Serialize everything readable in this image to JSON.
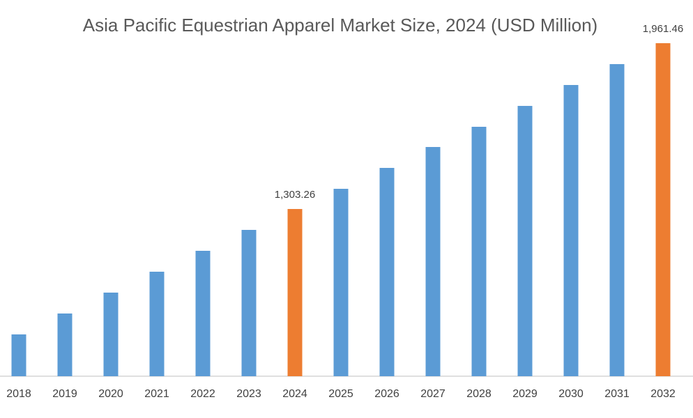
{
  "chart_data": {
    "type": "bar",
    "title": "Asia Pacific Equestrian Apparel Market Size, 2024 (USD Million)",
    "categories": [
      "2018",
      "2019",
      "2020",
      "2021",
      "2022",
      "2023",
      "2024",
      "2025",
      "2026",
      "2027",
      "2028",
      "2029",
      "2030",
      "2031",
      "2032"
    ],
    "values": [
      805.4,
      888.4,
      971.4,
      1054.3,
      1137.3,
      1220.3,
      1303.26,
      1383.4,
      1466.4,
      1549.4,
      1629.6,
      1712.5,
      1795.5,
      1878.4,
      1961.46
    ],
    "value_labels": [
      null,
      null,
      null,
      null,
      null,
      null,
      "1,303.26",
      null,
      null,
      null,
      null,
      null,
      null,
      null,
      "1,961.46"
    ],
    "colors": [
      "#5b9bd5",
      "#5b9bd5",
      "#5b9bd5",
      "#5b9bd5",
      "#5b9bd5",
      "#5b9bd5",
      "#ed7d31",
      "#5b9bd5",
      "#5b9bd5",
      "#5b9bd5",
      "#5b9bd5",
      "#5b9bd5",
      "#5b9bd5",
      "#5b9bd5",
      "#ed7d31"
    ]
  }
}
